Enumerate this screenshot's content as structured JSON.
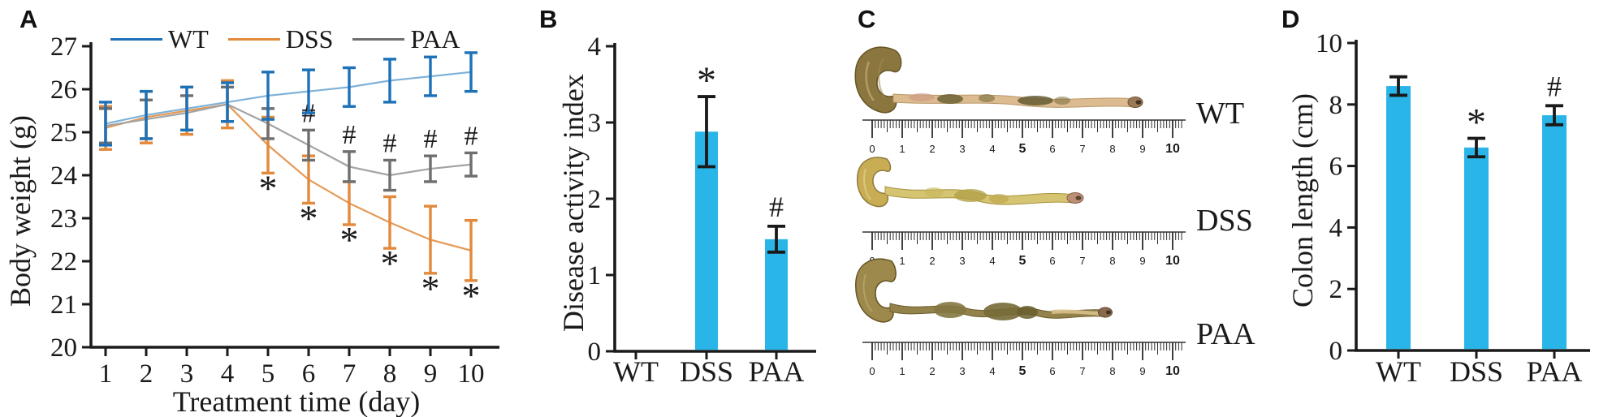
{
  "figure": {
    "background": "#ffffff",
    "accent_bar_color": "#29b5e8",
    "axis_color": "#1a1a1a"
  },
  "panels": {
    "a": {
      "label": "A",
      "y_title": "Body weight (g)",
      "x_title": "Treatment time (day)",
      "legend": [
        "WT",
        "DSS",
        "PAA"
      ]
    },
    "b": {
      "label": "B",
      "y_title": "Disease activity index"
    },
    "c": {
      "label": "C",
      "rows": [
        {
          "label": "WT",
          "colon_span_cm": 9
        },
        {
          "label": "DSS",
          "colon_span_cm": 7
        },
        {
          "label": "PAA",
          "colon_span_cm": 8
        }
      ],
      "ruler_numbers": [
        "0",
        "1",
        "2",
        "3",
        "4",
        "5",
        "6",
        "7",
        "8",
        "9",
        "10"
      ]
    },
    "d": {
      "label": "D",
      "y_title": "Colon length (cm)"
    }
  },
  "chart_data": [
    {
      "id": "body_weight",
      "type": "line",
      "ylabel": "Body weight (g)",
      "xlabel": "Treatment time (day)",
      "x": [
        1,
        2,
        3,
        4,
        5,
        6,
        7,
        8,
        9,
        10
      ],
      "ylim": [
        20,
        27
      ],
      "y_ticks": [
        20,
        21,
        22,
        23,
        24,
        25,
        26,
        27
      ],
      "legend_position": "top",
      "grid": false,
      "series": [
        {
          "name": "DSS",
          "color": "#e2893b",
          "line_color": "#e59a57",
          "values": [
            25.1,
            25.35,
            25.5,
            25.65,
            24.7,
            23.9,
            23.35,
            22.9,
            22.5,
            22.25
          ],
          "errors": [
            0.5,
            0.6,
            0.55,
            0.55,
            0.65,
            0.55,
            0.5,
            0.6,
            0.78,
            0.7
          ],
          "annotation_symbol": "*",
          "annotated_days": [
            5,
            6,
            7,
            8,
            9,
            10
          ],
          "annotation_side": "below"
        },
        {
          "name": "PAA",
          "color": "#6f6f6f",
          "line_color": "#a3a3a3",
          "values": [
            25.15,
            25.3,
            25.45,
            25.65,
            25.2,
            24.7,
            24.2,
            24.0,
            24.15,
            24.25
          ],
          "errors": [
            0.4,
            0.45,
            0.4,
            0.4,
            0.35,
            0.35,
            0.35,
            0.35,
            0.3,
            0.27
          ],
          "annotation_symbol": "#",
          "annotated_days": [
            6,
            7,
            8,
            9,
            10
          ],
          "annotation_side": "above"
        },
        {
          "name": "WT",
          "color": "#1d71b8",
          "line_color": "#7fb2d9",
          "values": [
            25.2,
            25.4,
            25.55,
            25.7,
            25.85,
            25.95,
            26.05,
            26.2,
            26.3,
            26.4
          ],
          "errors": [
            0.5,
            0.55,
            0.5,
            0.45,
            0.55,
            0.5,
            0.45,
            0.5,
            0.45,
            0.45
          ],
          "annotation_symbol": "",
          "annotated_days": [],
          "annotation_side": ""
        }
      ]
    },
    {
      "id": "disease_activity_index",
      "type": "bar",
      "ylabel": "Disease activity index",
      "categories": [
        "WT",
        "DSS",
        "PAA"
      ],
      "values": [
        0,
        2.88,
        1.47
      ],
      "errors": [
        0,
        0.46,
        0.17
      ],
      "annotations": [
        "",
        "*",
        "#"
      ],
      "ylim": [
        0,
        4
      ],
      "y_ticks": [
        0,
        1,
        2,
        3,
        4
      ],
      "bar_color": "#29b5e8",
      "grid": false
    },
    {
      "id": "colon_length",
      "type": "bar",
      "ylabel": "Colon length (cm)",
      "categories": [
        "WT",
        "DSS",
        "PAA"
      ],
      "values": [
        8.6,
        6.6,
        7.65
      ],
      "errors": [
        0.3,
        0.3,
        0.31
      ],
      "annotations": [
        "",
        "*",
        "#"
      ],
      "ylim": [
        0,
        10
      ],
      "y_ticks": [
        0,
        2,
        4,
        6,
        8,
        10
      ],
      "bar_color": "#29b5e8",
      "grid": false
    }
  ]
}
